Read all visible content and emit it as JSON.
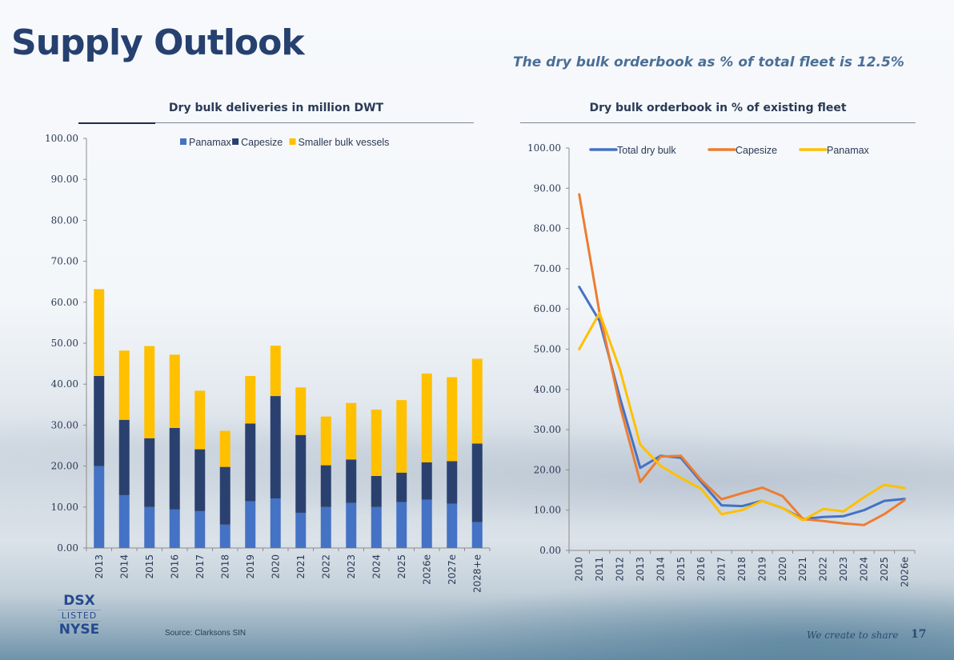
{
  "page": {
    "title": "Supply Outlook",
    "subtitle": "The dry bulk orderbook as % of total fleet is 12.5%",
    "source": "Source: Clarksons SIN",
    "footer_tagline": "We create to share",
    "page_number": "17",
    "logo": {
      "line1": "DSX",
      "line2": "LISTED",
      "line3": "NYSE"
    }
  },
  "colors": {
    "panamax_bar": "#4472c4",
    "capesize_bar": "#2a4170",
    "smaller_bar": "#ffc000",
    "total_line": "#4472c4",
    "capesize_line": "#ed7d31",
    "panamax_line": "#ffc000",
    "title": "#26406f"
  },
  "chart_data": [
    {
      "type": "bar",
      "stacked": true,
      "title": "Dry bulk deliveries in million DWT",
      "xlabel": "",
      "ylabel": "",
      "ylim": [
        0,
        100
      ],
      "yticks": [
        "0.00",
        "10.00",
        "20.00",
        "30.00",
        "40.00",
        "50.00",
        "60.00",
        "70.00",
        "80.00",
        "90.00",
        "100.00"
      ],
      "legend_position": "top",
      "grid": false,
      "categories": [
        "2013",
        "2014",
        "2015",
        "2016",
        "2017",
        "2018",
        "2019",
        "2020",
        "2021",
        "2022",
        "2023",
        "2024",
        "2025",
        "2026e",
        "2027e",
        "2028+e"
      ],
      "series": [
        {
          "name": "Panamax",
          "values": [
            20.0,
            12.9,
            10.0,
            9.4,
            9.0,
            5.7,
            11.4,
            12.1,
            8.6,
            10.0,
            11.0,
            10.0,
            11.2,
            11.8,
            10.8,
            6.3
          ]
        },
        {
          "name": "Capesize",
          "values": [
            22.0,
            18.4,
            16.8,
            19.9,
            15.1,
            14.1,
            19.0,
            25.0,
            19.0,
            10.2,
            10.6,
            7.6,
            7.2,
            9.1,
            10.4,
            19.2
          ]
        },
        {
          "name": "Smaller bulk vessels",
          "values": [
            21.2,
            16.9,
            22.5,
            17.9,
            14.3,
            8.8,
            11.6,
            12.3,
            11.6,
            11.9,
            13.8,
            16.2,
            17.7,
            21.7,
            20.5,
            20.7
          ]
        }
      ]
    },
    {
      "type": "line",
      "title": "Dry bulk orderbook in % of existing fleet",
      "xlabel": "",
      "ylabel": "",
      "ylim": [
        0,
        100
      ],
      "yticks": [
        "0.00",
        "10.00",
        "20.00",
        "30.00",
        "40.00",
        "50.00",
        "60.00",
        "70.00",
        "80.00",
        "90.00",
        "100.00"
      ],
      "legend_position": "top",
      "grid": false,
      "categories": [
        "2010",
        "2011",
        "2012",
        "2013",
        "2014",
        "2015",
        "2016",
        "2017",
        "2018",
        "2019",
        "2020",
        "2021",
        "2022",
        "2023",
        "2024",
        "2025",
        "2026e"
      ],
      "series": [
        {
          "name": "Total dry bulk",
          "values": [
            65.5,
            57.0,
            38.0,
            20.5,
            23.5,
            23.0,
            17.0,
            11.2,
            11.0,
            12.3,
            10.5,
            7.8,
            8.3,
            8.5,
            10.0,
            12.3,
            12.8
          ]
        },
        {
          "name": "Capesize",
          "values": [
            88.5,
            59.0,
            36.0,
            17.0,
            23.3,
            23.5,
            17.5,
            12.7,
            14.2,
            15.6,
            13.5,
            7.8,
            7.3,
            6.7,
            6.3,
            9.0,
            12.5
          ]
        },
        {
          "name": "Panamax",
          "values": [
            50.0,
            59.0,
            45.0,
            26.3,
            21.0,
            18.0,
            15.3,
            9.0,
            10.0,
            12.3,
            10.5,
            7.5,
            10.3,
            9.7,
            13.2,
            16.3,
            15.5
          ]
        }
      ]
    }
  ]
}
